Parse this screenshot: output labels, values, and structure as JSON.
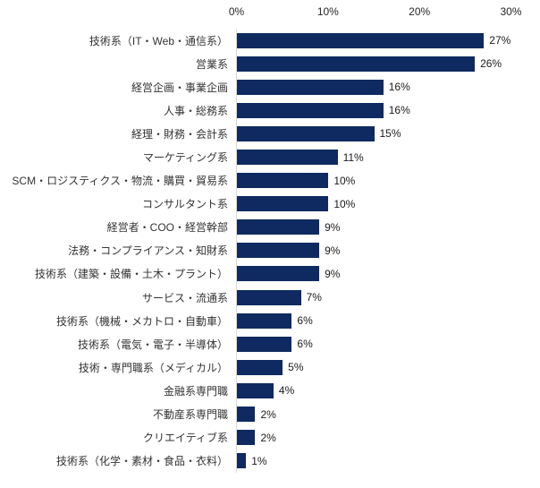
{
  "chart_data": {
    "type": "bar",
    "orientation": "horizontal",
    "title": "",
    "categories": [
      "技術系（IT・Web・通信系）",
      "営業系",
      "経営企画・事業企画",
      "人事・総務系",
      "経理・財務・会計系",
      "マーケティング系",
      "SCM・ロジスティクス・物流・購買・貿易系",
      "コンサルタント系",
      "経営者・COO・経営幹部",
      "法務・コンプライアンス・知財系",
      "技術系（建築・設備・土木・プラント）",
      "サービス・流通系",
      "技術系（機械・メカトロ・自動車）",
      "技術系（電気・電子・半導体）",
      "技術・専門職系（メディカル）",
      "金融系専門職",
      "不動産系専門職",
      "クリエイティブ系",
      "技術系（化学・素材・食品・衣料）"
    ],
    "values": [
      27,
      26,
      16,
      16,
      15,
      11,
      10,
      10,
      9,
      9,
      9,
      7,
      6,
      6,
      5,
      4,
      2,
      2,
      1
    ],
    "value_labels": [
      "27%",
      "26%",
      "16%",
      "16%",
      "15%",
      "11%",
      "10%",
      "10%",
      "9%",
      "9%",
      "9%",
      "7%",
      "6%",
      "6%",
      "5%",
      "4%",
      "2%",
      "2%",
      "1%"
    ],
    "x_axis": {
      "tick_labels": [
        "0%",
        "10%",
        "20%",
        "30%"
      ],
      "tick_values": [
        0,
        10,
        20,
        30
      ],
      "min": 0,
      "max": 30,
      "position": "top"
    },
    "grid": "off",
    "legend": "none",
    "colors": {
      "bar": "#0e2a60",
      "axis_line": "#d9d9d9",
      "category_text": "#333333",
      "value_text": "#1a1a1a",
      "tick_text": "#262626"
    }
  }
}
